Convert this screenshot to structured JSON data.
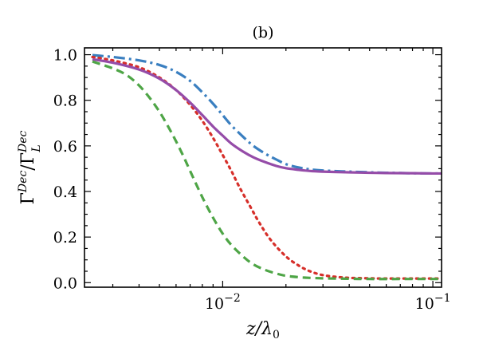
{
  "chart_data": {
    "type": "line",
    "title": "(b)",
    "xlabel": "z/λ0",
    "ylabel": "ΓDec/ΓLDec",
    "xscale": "log",
    "xlim": [
      0.0022,
      0.11
    ],
    "ylim": [
      -0.02,
      1.03
    ],
    "grid": false,
    "legend": "none",
    "yticks": [
      {
        "value": 0.0,
        "label": "0.0"
      },
      {
        "value": 0.2,
        "label": "0.2"
      },
      {
        "value": 0.4,
        "label": "0.4"
      },
      {
        "value": 0.6,
        "label": "0.6"
      },
      {
        "value": 0.8,
        "label": "0.8"
      },
      {
        "value": 1.0,
        "label": "1.0"
      }
    ],
    "xticks": [
      {
        "value": 0.01,
        "base": "10",
        "exp": "−2"
      },
      {
        "value": 0.1,
        "base": "10",
        "exp": "−1"
      }
    ],
    "series": [
      {
        "name": "blue-dashdot",
        "color": "#3a7fc0",
        "dash": "14 5 3 5",
        "x": [
          0.0024,
          0.003,
          0.004,
          0.005,
          0.006,
          0.007,
          0.008,
          0.009,
          0.01,
          0.011,
          0.0125,
          0.014,
          0.016,
          0.018,
          0.02,
          0.023,
          0.026,
          0.03,
          0.035,
          0.04,
          0.05,
          0.06,
          0.07,
          0.08,
          0.1,
          0.11
        ],
        "y": [
          0.998,
          0.99,
          0.975,
          0.955,
          0.925,
          0.885,
          0.835,
          0.785,
          0.735,
          0.69,
          0.64,
          0.6,
          0.565,
          0.54,
          0.52,
          0.505,
          0.497,
          0.492,
          0.489,
          0.487,
          0.484,
          0.482,
          0.481,
          0.48,
          0.479,
          0.479
        ]
      },
      {
        "name": "red-dotted",
        "color": "#d62f2a",
        "dash": "2.5 5.5",
        "x": [
          0.0024,
          0.003,
          0.004,
          0.005,
          0.006,
          0.007,
          0.008,
          0.009,
          0.01,
          0.011,
          0.012,
          0.0135,
          0.015,
          0.017,
          0.02,
          0.023,
          0.026,
          0.03,
          0.035,
          0.04,
          0.05,
          0.06,
          0.08,
          0.1,
          0.11
        ],
        "y": [
          0.99,
          0.975,
          0.945,
          0.9,
          0.845,
          0.78,
          0.71,
          0.635,
          0.56,
          0.49,
          0.42,
          0.335,
          0.26,
          0.185,
          0.115,
          0.075,
          0.05,
          0.033,
          0.025,
          0.021,
          0.019,
          0.018,
          0.018,
          0.018,
          0.018
        ]
      },
      {
        "name": "purple-solid",
        "color": "#954ca8",
        "dash": "",
        "x": [
          0.0024,
          0.003,
          0.004,
          0.005,
          0.006,
          0.007,
          0.008,
          0.009,
          0.01,
          0.011,
          0.0125,
          0.014,
          0.016,
          0.018,
          0.02,
          0.023,
          0.026,
          0.03,
          0.035,
          0.04,
          0.05,
          0.06,
          0.08,
          0.1,
          0.11
        ],
        "y": [
          0.98,
          0.965,
          0.935,
          0.895,
          0.845,
          0.79,
          0.735,
          0.685,
          0.645,
          0.61,
          0.575,
          0.55,
          0.528,
          0.512,
          0.502,
          0.495,
          0.49,
          0.487,
          0.485,
          0.484,
          0.482,
          0.481,
          0.48,
          0.479,
          0.479
        ]
      },
      {
        "name": "green-dashed",
        "color": "#4ea546",
        "dash": "10 6",
        "x": [
          0.0024,
          0.003,
          0.0035,
          0.004,
          0.0045,
          0.005,
          0.0055,
          0.006,
          0.0065,
          0.007,
          0.008,
          0.009,
          0.01,
          0.011,
          0.0125,
          0.014,
          0.016,
          0.018,
          0.02,
          0.023,
          0.026,
          0.03,
          0.04,
          0.05,
          0.07,
          0.1,
          0.11
        ],
        "y": [
          0.97,
          0.94,
          0.91,
          0.865,
          0.81,
          0.75,
          0.685,
          0.62,
          0.555,
          0.49,
          0.375,
          0.285,
          0.215,
          0.165,
          0.115,
          0.08,
          0.055,
          0.04,
          0.03,
          0.024,
          0.021,
          0.019,
          0.017,
          0.016,
          0.016,
          0.016,
          0.016
        ]
      }
    ]
  }
}
